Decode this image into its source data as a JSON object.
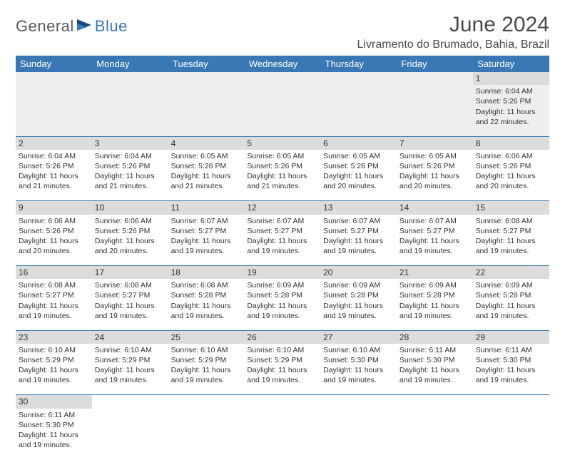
{
  "logo": {
    "text1": "General",
    "text2": "Blue"
  },
  "title": "June 2024",
  "location": "Livramento do Brumado, Bahia, Brazil",
  "colors": {
    "header_bg": "#3a78b5",
    "header_text": "#ffffff",
    "daynum_bg": "#dcdcdc",
    "border": "#3a78b5",
    "logo_gray": "#5a5a5a",
    "logo_blue": "#3a78b5"
  },
  "daysOfWeek": [
    "Sunday",
    "Monday",
    "Tuesday",
    "Wednesday",
    "Thursday",
    "Friday",
    "Saturday"
  ],
  "weeks": [
    {
      "nums": [
        "",
        "",
        "",
        "",
        "",
        "",
        "1"
      ],
      "cells": [
        null,
        null,
        null,
        null,
        null,
        null,
        {
          "sunrise": "Sunrise: 6:04 AM",
          "sunset": "Sunset: 5:26 PM",
          "day1": "Daylight: 11 hours",
          "day2": "and 22 minutes."
        }
      ]
    },
    {
      "nums": [
        "2",
        "3",
        "4",
        "5",
        "6",
        "7",
        "8"
      ],
      "cells": [
        {
          "sunrise": "Sunrise: 6:04 AM",
          "sunset": "Sunset: 5:26 PM",
          "day1": "Daylight: 11 hours",
          "day2": "and 21 minutes."
        },
        {
          "sunrise": "Sunrise: 6:04 AM",
          "sunset": "Sunset: 5:26 PM",
          "day1": "Daylight: 11 hours",
          "day2": "and 21 minutes."
        },
        {
          "sunrise": "Sunrise: 6:05 AM",
          "sunset": "Sunset: 5:26 PM",
          "day1": "Daylight: 11 hours",
          "day2": "and 21 minutes."
        },
        {
          "sunrise": "Sunrise: 6:05 AM",
          "sunset": "Sunset: 5:26 PM",
          "day1": "Daylight: 11 hours",
          "day2": "and 21 minutes."
        },
        {
          "sunrise": "Sunrise: 6:05 AM",
          "sunset": "Sunset: 5:26 PM",
          "day1": "Daylight: 11 hours",
          "day2": "and 20 minutes."
        },
        {
          "sunrise": "Sunrise: 6:05 AM",
          "sunset": "Sunset: 5:26 PM",
          "day1": "Daylight: 11 hours",
          "day2": "and 20 minutes."
        },
        {
          "sunrise": "Sunrise: 6:06 AM",
          "sunset": "Sunset: 5:26 PM",
          "day1": "Daylight: 11 hours",
          "day2": "and 20 minutes."
        }
      ]
    },
    {
      "nums": [
        "9",
        "10",
        "11",
        "12",
        "13",
        "14",
        "15"
      ],
      "cells": [
        {
          "sunrise": "Sunrise: 6:06 AM",
          "sunset": "Sunset: 5:26 PM",
          "day1": "Daylight: 11 hours",
          "day2": "and 20 minutes."
        },
        {
          "sunrise": "Sunrise: 6:06 AM",
          "sunset": "Sunset: 5:26 PM",
          "day1": "Daylight: 11 hours",
          "day2": "and 20 minutes."
        },
        {
          "sunrise": "Sunrise: 6:07 AM",
          "sunset": "Sunset: 5:27 PM",
          "day1": "Daylight: 11 hours",
          "day2": "and 19 minutes."
        },
        {
          "sunrise": "Sunrise: 6:07 AM",
          "sunset": "Sunset: 5:27 PM",
          "day1": "Daylight: 11 hours",
          "day2": "and 19 minutes."
        },
        {
          "sunrise": "Sunrise: 6:07 AM",
          "sunset": "Sunset: 5:27 PM",
          "day1": "Daylight: 11 hours",
          "day2": "and 19 minutes."
        },
        {
          "sunrise": "Sunrise: 6:07 AM",
          "sunset": "Sunset: 5:27 PM",
          "day1": "Daylight: 11 hours",
          "day2": "and 19 minutes."
        },
        {
          "sunrise": "Sunrise: 6:08 AM",
          "sunset": "Sunset: 5:27 PM",
          "day1": "Daylight: 11 hours",
          "day2": "and 19 minutes."
        }
      ]
    },
    {
      "nums": [
        "16",
        "17",
        "18",
        "19",
        "20",
        "21",
        "22"
      ],
      "cells": [
        {
          "sunrise": "Sunrise: 6:08 AM",
          "sunset": "Sunset: 5:27 PM",
          "day1": "Daylight: 11 hours",
          "day2": "and 19 minutes."
        },
        {
          "sunrise": "Sunrise: 6:08 AM",
          "sunset": "Sunset: 5:27 PM",
          "day1": "Daylight: 11 hours",
          "day2": "and 19 minutes."
        },
        {
          "sunrise": "Sunrise: 6:08 AM",
          "sunset": "Sunset: 5:28 PM",
          "day1": "Daylight: 11 hours",
          "day2": "and 19 minutes."
        },
        {
          "sunrise": "Sunrise: 6:09 AM",
          "sunset": "Sunset: 5:28 PM",
          "day1": "Daylight: 11 hours",
          "day2": "and 19 minutes."
        },
        {
          "sunrise": "Sunrise: 6:09 AM",
          "sunset": "Sunset: 5:28 PM",
          "day1": "Daylight: 11 hours",
          "day2": "and 19 minutes."
        },
        {
          "sunrise": "Sunrise: 6:09 AM",
          "sunset": "Sunset: 5:28 PM",
          "day1": "Daylight: 11 hours",
          "day2": "and 19 minutes."
        },
        {
          "sunrise": "Sunrise: 6:09 AM",
          "sunset": "Sunset: 5:28 PM",
          "day1": "Daylight: 11 hours",
          "day2": "and 19 minutes."
        }
      ]
    },
    {
      "nums": [
        "23",
        "24",
        "25",
        "26",
        "27",
        "28",
        "29"
      ],
      "cells": [
        {
          "sunrise": "Sunrise: 6:10 AM",
          "sunset": "Sunset: 5:29 PM",
          "day1": "Daylight: 11 hours",
          "day2": "and 19 minutes."
        },
        {
          "sunrise": "Sunrise: 6:10 AM",
          "sunset": "Sunset: 5:29 PM",
          "day1": "Daylight: 11 hours",
          "day2": "and 19 minutes."
        },
        {
          "sunrise": "Sunrise: 6:10 AM",
          "sunset": "Sunset: 5:29 PM",
          "day1": "Daylight: 11 hours",
          "day2": "and 19 minutes."
        },
        {
          "sunrise": "Sunrise: 6:10 AM",
          "sunset": "Sunset: 5:29 PM",
          "day1": "Daylight: 11 hours",
          "day2": "and 19 minutes."
        },
        {
          "sunrise": "Sunrise: 6:10 AM",
          "sunset": "Sunset: 5:30 PM",
          "day1": "Daylight: 11 hours",
          "day2": "and 19 minutes."
        },
        {
          "sunrise": "Sunrise: 6:11 AM",
          "sunset": "Sunset: 5:30 PM",
          "day1": "Daylight: 11 hours",
          "day2": "and 19 minutes."
        },
        {
          "sunrise": "Sunrise: 6:11 AM",
          "sunset": "Sunset: 5:30 PM",
          "day1": "Daylight: 11 hours",
          "day2": "and 19 minutes."
        }
      ]
    },
    {
      "nums": [
        "30",
        "",
        "",
        "",
        "",
        "",
        ""
      ],
      "cells": [
        {
          "sunrise": "Sunrise: 6:11 AM",
          "sunset": "Sunset: 5:30 PM",
          "day1": "Daylight: 11 hours",
          "day2": "and 19 minutes."
        },
        null,
        null,
        null,
        null,
        null,
        null
      ]
    }
  ]
}
